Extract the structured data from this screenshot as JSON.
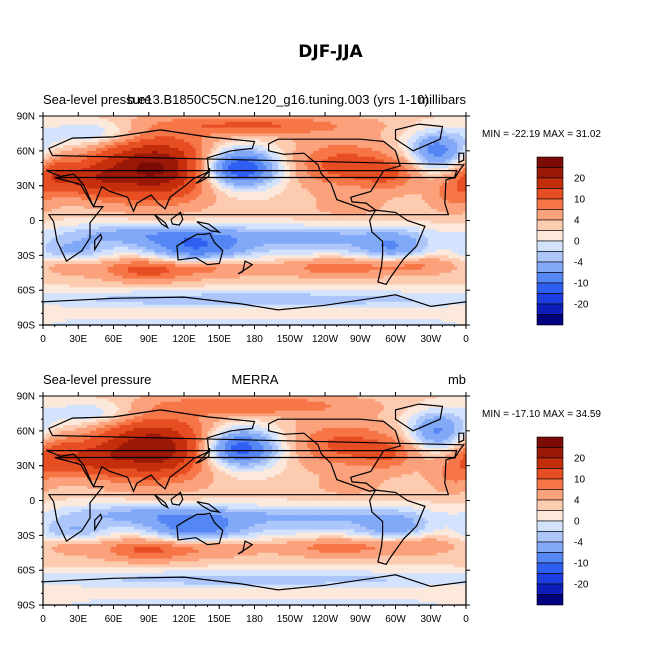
{
  "figure": {
    "title": "DJF-JJA"
  },
  "colors": {
    "levels": [
      -25,
      -20,
      -15,
      -10,
      -7,
      -4,
      -2,
      0,
      2,
      4,
      7,
      10,
      15,
      20,
      25
    ],
    "fills": [
      "#00007f",
      "#0e1ebd",
      "#1c3ee0",
      "#2f5ef2",
      "#5486f5",
      "#82a9f8",
      "#acc6fb",
      "#d3e3fd",
      "#fde9dc",
      "#fccbb0",
      "#fba27c",
      "#f77647",
      "#e74e22",
      "#c42e0b",
      "#9a1808",
      "#7a0b05"
    ],
    "land_outline": "#000000"
  },
  "chart_data": [
    {
      "type": "heatmap",
      "left_label": "Sea-level pressure",
      "center_label": "b.e13.B1850C5CN.ne120_g16.tuning.003 (yrs 1-10)",
      "right_label": "millibars",
      "stats": "MIN = -22.19 MAX =  31.02",
      "min": -22.19,
      "max": 31.02,
      "x_ticks": [
        "0",
        "30E",
        "60E",
        "90E",
        "120E",
        "150E",
        "180",
        "150W",
        "120W",
        "90W",
        "60W",
        "30W",
        "0"
      ],
      "y_ticks": [
        "90N",
        "60N",
        "30N",
        "0",
        "30S",
        "60S",
        "90S"
      ],
      "colorbar_labels": [
        "20",
        "10",
        "4",
        "0",
        "-4",
        "-10",
        "-20"
      ]
    },
    {
      "type": "heatmap",
      "left_label": "Sea-level pressure",
      "center_label": "MERRA",
      "right_label": "mb",
      "stats": "MIN = -17.10 MAX =  34.59",
      "min": -17.1,
      "max": 34.59,
      "x_ticks": [
        "0",
        "30E",
        "60E",
        "90E",
        "120E",
        "150E",
        "180",
        "150W",
        "120W",
        "90W",
        "60W",
        "30W",
        "0"
      ],
      "y_ticks": [
        "90N",
        "60N",
        "30N",
        "0",
        "30S",
        "60S",
        "90S"
      ],
      "colorbar_labels": [
        "20",
        "10",
        "4",
        "0",
        "-4",
        "-10",
        "-20"
      ]
    }
  ]
}
